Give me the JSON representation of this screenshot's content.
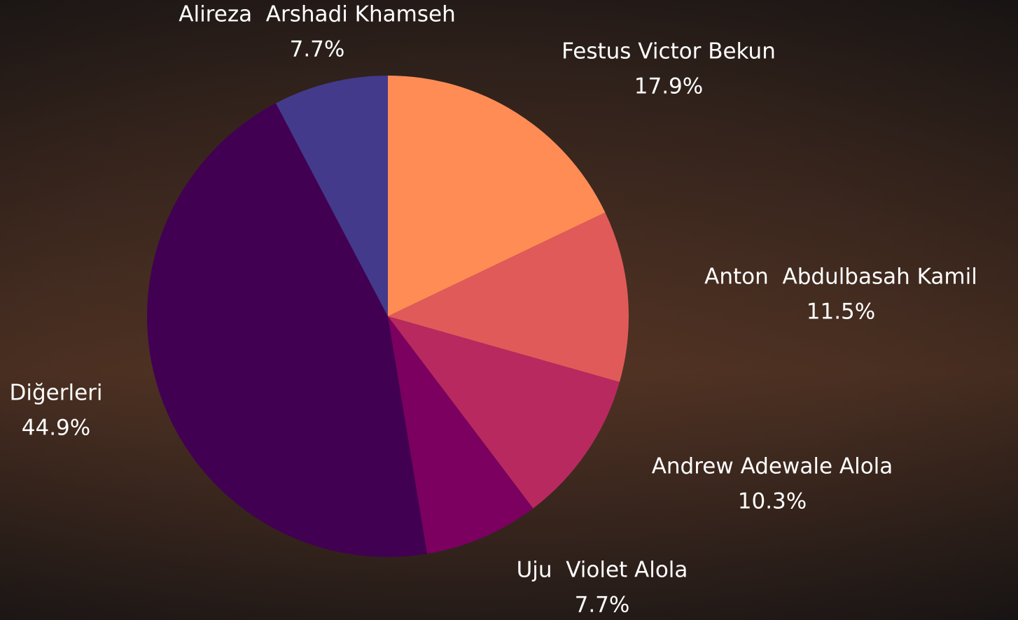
{
  "chart_data": {
    "type": "pie",
    "categories": [
      "Festus Victor Bekun",
      "Anton  Abdulbasah Kamil",
      "Andrew Adewale Alola",
      "Uju  Violet Alola",
      "Diğerleri",
      "Alireza  Arshadi Khamseh"
    ],
    "values": [
      17.9,
      11.5,
      10.3,
      7.7,
      44.9,
      7.7
    ],
    "value_labels": [
      "17.9%",
      "11.5%",
      "10.3%",
      "7.7%",
      "44.9%",
      "7.7%"
    ],
    "colors": [
      "#ff8c55",
      "#e05a5a",
      "#b8295f",
      "#7b0060",
      "#420052",
      "#433a8c"
    ]
  }
}
